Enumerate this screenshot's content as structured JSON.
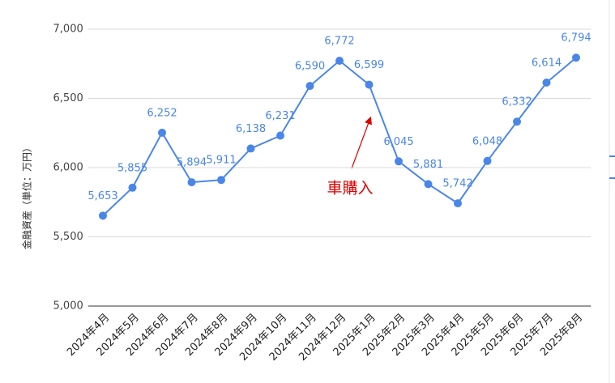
{
  "chart_data": {
    "type": "line",
    "y_label": "金融資産（単位：万円）",
    "annotation": "車購入",
    "categories": [
      "2024年4月",
      "2024年5月",
      "2024年6月",
      "2024年7月",
      "2024年8月",
      "2024年9月",
      "2024年10月",
      "2024年11月",
      "2024年12月",
      "2025年1月",
      "2025年2月",
      "2025年3月",
      "2025年4月",
      "2025年5月",
      "2025年6月",
      "2025年7月",
      "2025年8月"
    ],
    "series": [
      {
        "name": "金融資産",
        "color": "#4a86e8",
        "values": [
          5653,
          5855,
          6252,
          5894,
          5911,
          6138,
          6231,
          6590,
          6772,
          6599,
          6045,
          5881,
          5742,
          6048,
          6332,
          6614,
          6794
        ],
        "value_labels": [
          "5,653",
          "5,855",
          "6,252",
          "5,894",
          "5,911",
          "6,138",
          "6,231",
          "6,590",
          "6,772",
          "6,599",
          "6,045",
          "5,881",
          "5,742",
          "6,048",
          "6,332",
          "6,614",
          "6,794"
        ]
      }
    ],
    "ylim": [
      5000,
      7000
    ],
    "yticks": [
      {
        "value": 5000,
        "label": "5,000"
      },
      {
        "value": 5500,
        "label": "5,500"
      },
      {
        "value": 6000,
        "label": "6,000"
      },
      {
        "value": 6500,
        "label": "6,500"
      },
      {
        "value": 7000,
        "label": "7,000"
      }
    ],
    "grid": true
  }
}
